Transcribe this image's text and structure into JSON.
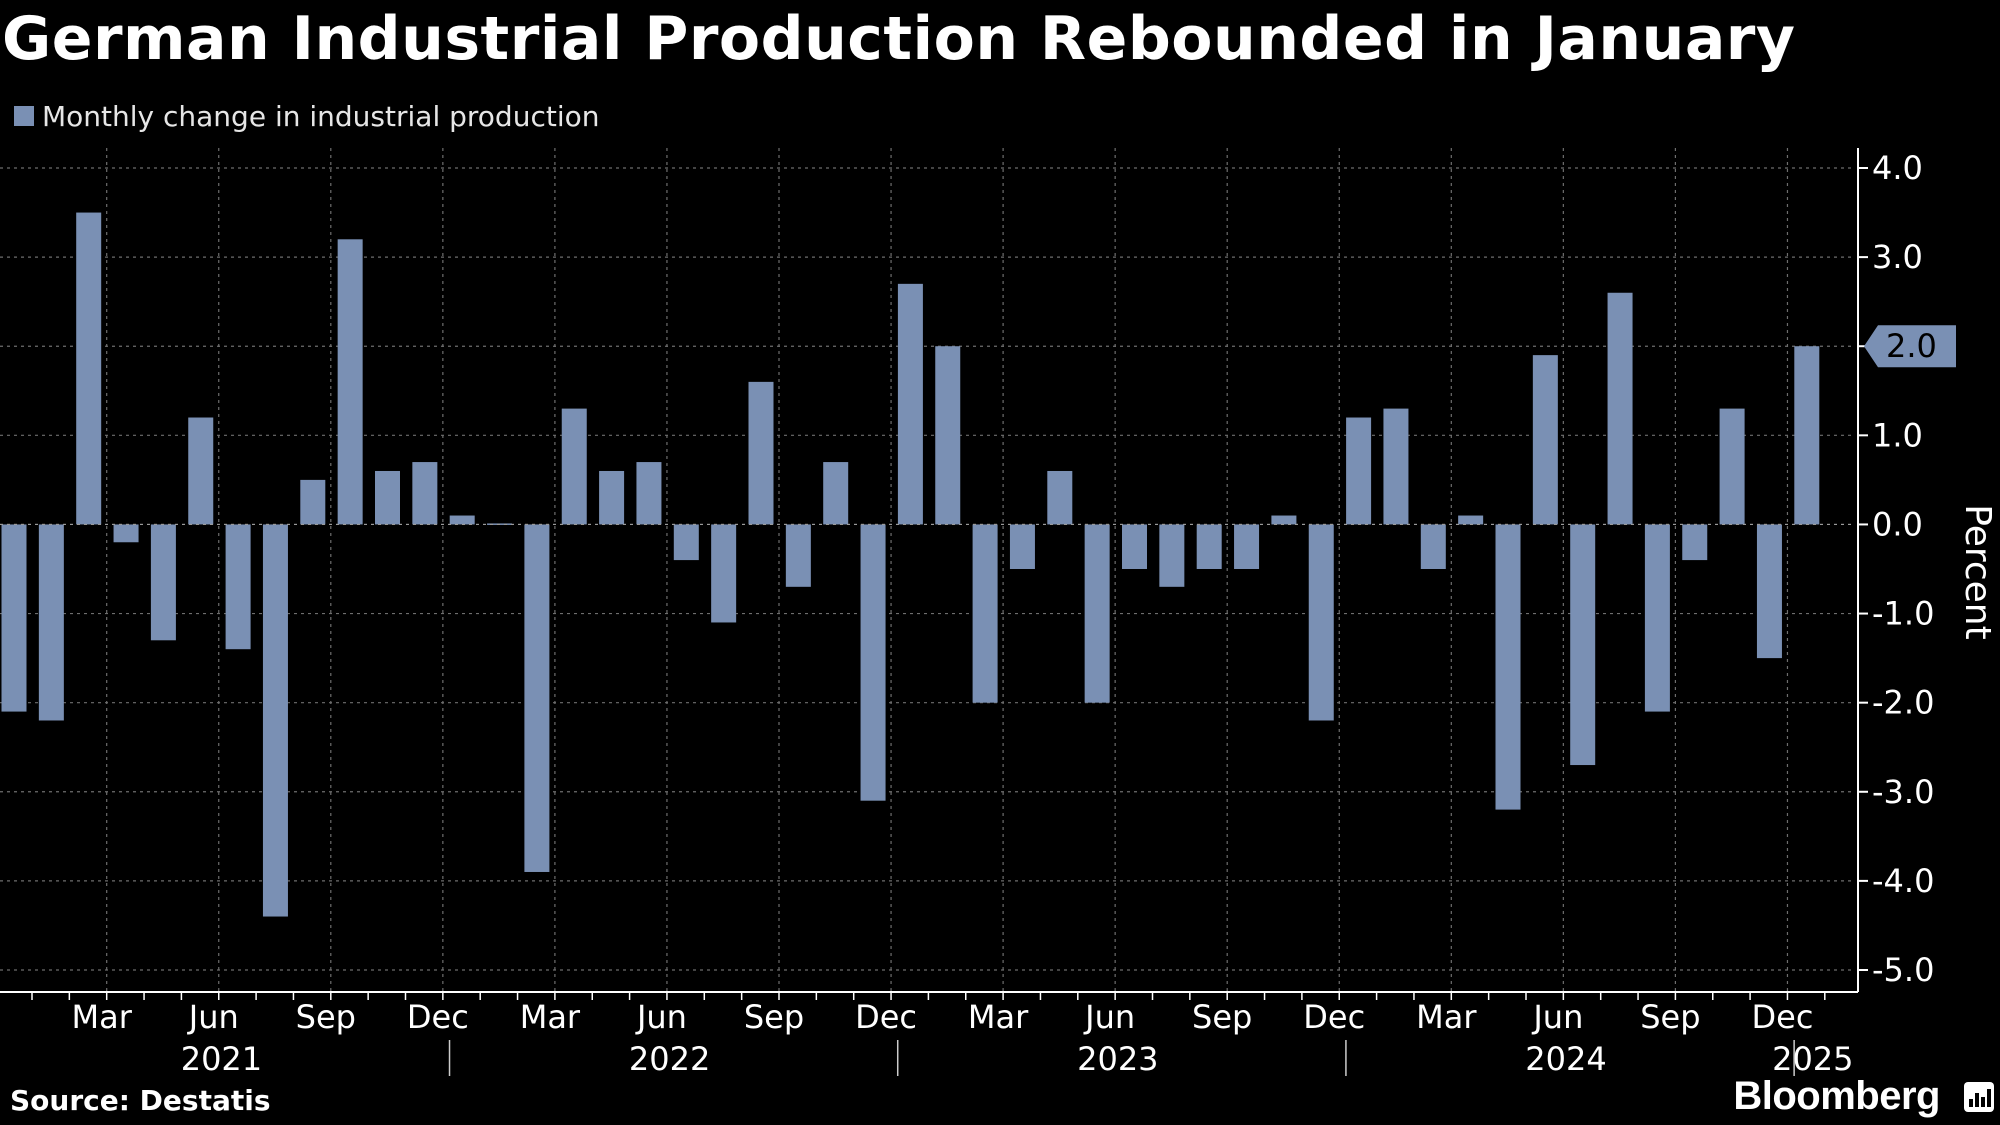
{
  "title": "German Industrial Production Rebounded in January",
  "legend": {
    "label": "Monthly change in industrial production"
  },
  "source": "Source: Destatis",
  "brand": "Bloomberg",
  "colors": {
    "background": "#000000",
    "bar": "#7a90b4",
    "grid": "#6e6e6e",
    "text": "#ffffff"
  },
  "chart_data": {
    "type": "bar",
    "ylabel": "Percent",
    "ylim": [
      -5.0,
      4.0
    ],
    "yticks": [
      "4.0",
      "3.0",
      "2.0",
      "1.0",
      "0.0",
      "-1.0",
      "-2.0",
      "-3.0",
      "-4.0",
      "-5.0"
    ],
    "grid": true,
    "last_value_label": "2.0",
    "categories": [
      "Jan 2021",
      "Feb 2021",
      "Mar 2021",
      "Apr 2021",
      "May 2021",
      "Jun 2021",
      "Jul 2021",
      "Aug 2021",
      "Sep 2021",
      "Oct 2021",
      "Nov 2021",
      "Dec 2021",
      "Jan 2022",
      "Feb 2022",
      "Mar 2022",
      "Apr 2022",
      "May 2022",
      "Jun 2022",
      "Jul 2022",
      "Aug 2022",
      "Sep 2022",
      "Oct 2022",
      "Nov 2022",
      "Dec 2022",
      "Jan 2023",
      "Feb 2023",
      "Mar 2023",
      "Apr 2023",
      "May 2023",
      "Jun 2023",
      "Jul 2023",
      "Aug 2023",
      "Sep 2023",
      "Oct 2023",
      "Nov 2023",
      "Dec 2023",
      "Jan 2024",
      "Feb 2024",
      "Mar 2024",
      "Apr 2024",
      "May 2024",
      "Jun 2024",
      "Jul 2024",
      "Aug 2024",
      "Sep 2024",
      "Oct 2024",
      "Nov 2024",
      "Dec 2024",
      "Jan 2025"
    ],
    "series": [
      {
        "values": [
          -2.1,
          -2.2,
          3.5,
          -0.2,
          -1.3,
          1.2,
          -1.4,
          -4.4,
          0.5,
          3.2,
          0.6,
          0.7,
          0.1,
          0.0,
          -3.9,
          1.3,
          0.6,
          0.7,
          -0.4,
          -1.1,
          1.6,
          -0.7,
          0.7,
          -3.1,
          2.7,
          2.0,
          -2.0,
          -0.5,
          0.6,
          -2.0,
          -0.5,
          -0.7,
          -0.5,
          -0.5,
          0.1,
          -2.2,
          1.2,
          1.3,
          -0.5,
          0.1,
          -3.2,
          1.9,
          -2.7,
          2.6,
          -2.1,
          -0.4,
          1.3,
          -1.5,
          2.0
        ]
      }
    ],
    "x_month_ticks": [
      {
        "index": 2,
        "label": "Mar"
      },
      {
        "index": 5,
        "label": "Jun"
      },
      {
        "index": 8,
        "label": "Sep"
      },
      {
        "index": 11,
        "label": "Dec"
      },
      {
        "index": 14,
        "label": "Mar"
      },
      {
        "index": 17,
        "label": "Jun"
      },
      {
        "index": 20,
        "label": "Sep"
      },
      {
        "index": 23,
        "label": "Dec"
      },
      {
        "index": 26,
        "label": "Mar"
      },
      {
        "index": 29,
        "label": "Jun"
      },
      {
        "index": 32,
        "label": "Sep"
      },
      {
        "index": 35,
        "label": "Dec"
      },
      {
        "index": 38,
        "label": "Mar"
      },
      {
        "index": 41,
        "label": "Jun"
      },
      {
        "index": 44,
        "label": "Sep"
      },
      {
        "index": 47,
        "label": "Dec"
      }
    ],
    "x_year_labels": [
      {
        "start": 0,
        "end": 11,
        "label": "2021"
      },
      {
        "start": 12,
        "end": 23,
        "label": "2022"
      },
      {
        "start": 24,
        "end": 35,
        "label": "2023"
      },
      {
        "start": 36,
        "end": 47,
        "label": "2024"
      },
      {
        "start": 48,
        "end": 48,
        "label": "2025"
      }
    ]
  }
}
